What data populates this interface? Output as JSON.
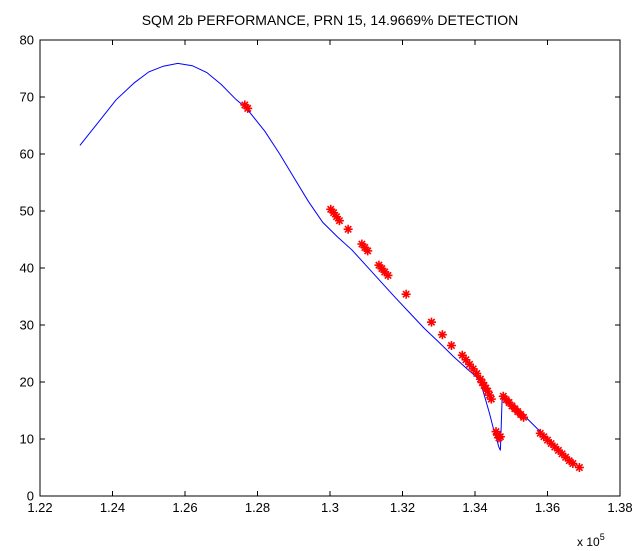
{
  "chart_data": {
    "type": "line",
    "title": "SQM 2b PERFORMANCE, PRN 15, 14.9669% DETECTION",
    "xlabel": "",
    "ylabel": "",
    "x_exponent_label": "x 10",
    "x_exponent_power": "5",
    "xlim": [
      1.22,
      1.38
    ],
    "ylim": [
      0,
      80
    ],
    "x_tick_labels": [
      "1.22",
      "1.24",
      "1.26",
      "1.28",
      "1.3",
      "1.32",
      "1.34",
      "1.36",
      "1.38"
    ],
    "y_tick_labels": [
      "0",
      "10",
      "20",
      "30",
      "40",
      "50",
      "60",
      "70",
      "80"
    ],
    "grid": false,
    "legend": "none",
    "series": [
      {
        "style": "line",
        "color": "#0000ff",
        "x": [
          1.231,
          1.236,
          1.241,
          1.246,
          1.25,
          1.254,
          1.258,
          1.262,
          1.266,
          1.27,
          1.274,
          1.277,
          1.282,
          1.286,
          1.29,
          1.294,
          1.298,
          1.302,
          1.306,
          1.31,
          1.314,
          1.318,
          1.322,
          1.326,
          1.33,
          1.334,
          1.338,
          1.3415,
          1.342,
          1.344,
          1.3455,
          1.346,
          1.3465,
          1.347,
          1.3475,
          1.35,
          1.354,
          1.358,
          1.362,
          1.366,
          1.369
        ],
        "y": [
          61.5,
          65.5,
          69.5,
          72.5,
          74.4,
          75.4,
          75.9,
          75.5,
          74.3,
          72.2,
          69.6,
          68.0,
          64.0,
          60.1,
          55.9,
          51.7,
          48.0,
          45.5,
          43.2,
          40.4,
          37.6,
          34.8,
          32.1,
          29.4,
          27.0,
          24.5,
          22.2,
          20.3,
          18.9,
          14.5,
          10.8,
          10.0,
          8.7,
          8.0,
          17.5,
          16.0,
          13.8,
          11.3,
          8.9,
          6.6,
          5.0
        ]
      },
      {
        "style": "markers",
        "marker": "asterisk",
        "color": "#ff0000",
        "x": [
          1.2765,
          1.2773,
          1.3002,
          1.301,
          1.3018,
          1.3026,
          1.305,
          1.3088,
          1.3096,
          1.3104,
          1.3135,
          1.3143,
          1.3151,
          1.316,
          1.321,
          1.328,
          1.331,
          1.3335,
          1.3365,
          1.3375,
          1.3385,
          1.3395,
          1.3405,
          1.3415,
          1.342,
          1.3425,
          1.343,
          1.3435,
          1.344,
          1.3445,
          1.3458,
          1.3462,
          1.3466,
          1.347,
          1.3478,
          1.3486,
          1.3494,
          1.3502,
          1.351,
          1.3518,
          1.3526,
          1.3534,
          1.358,
          1.359,
          1.36,
          1.361,
          1.362,
          1.363,
          1.364,
          1.365,
          1.366,
          1.367,
          1.3688
        ],
        "y": [
          68.6,
          68.0,
          50.3,
          49.7,
          49.0,
          48.3,
          46.8,
          44.2,
          43.6,
          43.0,
          40.5,
          39.9,
          39.3,
          38.7,
          35.4,
          30.5,
          28.3,
          26.4,
          24.7,
          23.9,
          23.1,
          22.3,
          21.5,
          20.5,
          19.9,
          19.4,
          18.9,
          18.4,
          17.7,
          17.0,
          11.3,
          10.7,
          10.2,
          10.4,
          17.5,
          16.9,
          16.4,
          15.8,
          15.3,
          14.8,
          14.3,
          13.8,
          11.0,
          10.4,
          9.8,
          9.2,
          8.6,
          8.0,
          7.4,
          6.8,
          6.2,
          5.7,
          5.0
        ]
      }
    ]
  }
}
